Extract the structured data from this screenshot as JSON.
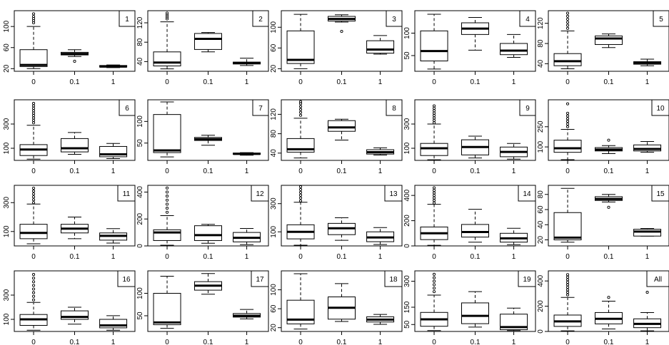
{
  "figure": {
    "background": "#ffffff",
    "box_fill": "#ffffff",
    "stroke_color": "#000000"
  },
  "chart_data": [
    {
      "type": "boxplot",
      "title": "",
      "panel_label": "1",
      "categories": [
        "0",
        "0.1",
        "1"
      ],
      "yticks": [
        20,
        60,
        100
      ],
      "ylim": [
        15,
        130
      ],
      "series": [
        {
          "category": "0",
          "whisker_low": 20,
          "q1": 24,
          "median": 27,
          "q3": 56,
          "whisker_high": 100,
          "outliers": [
            107,
            111,
            115,
            119,
            124
          ]
        },
        {
          "category": "0.1",
          "whisker_low": 43,
          "q1": 46,
          "median": 48,
          "q3": 51,
          "whisker_high": 56,
          "outliers": [
            34
          ]
        },
        {
          "category": "1",
          "whisker_low": 22,
          "q1": 23,
          "median": 24,
          "q3": 26,
          "whisker_high": 27,
          "outliers": []
        }
      ]
    },
    {
      "type": "boxplot",
      "title": "",
      "panel_label": "2",
      "categories": [
        "0",
        "0.1",
        "1"
      ],
      "yticks": [
        40,
        80,
        120
      ],
      "ylim": [
        20,
        145
      ],
      "series": [
        {
          "category": "0",
          "whisker_low": 25,
          "q1": 31,
          "median": 38,
          "q3": 60,
          "whisker_high": 122,
          "outliers": [
            128,
            132,
            136,
            140
          ]
        },
        {
          "category": "0.1",
          "whisker_low": 60,
          "q1": 65,
          "median": 87,
          "q3": 98,
          "whisker_high": 100,
          "outliers": []
        },
        {
          "category": "1",
          "whisker_low": 32,
          "q1": 35,
          "median": 37,
          "q3": 39,
          "whisker_high": 47,
          "outliers": []
        }
      ]
    },
    {
      "type": "boxplot",
      "title": "",
      "panel_label": "3",
      "categories": [
        "0",
        "0.1",
        "1"
      ],
      "yticks": [
        20,
        60,
        100
      ],
      "ylim": [
        15,
        132
      ],
      "series": [
        {
          "category": "0",
          "whisker_low": 20,
          "q1": 30,
          "median": 37,
          "q3": 93,
          "whisker_high": 125,
          "outliers": []
        },
        {
          "category": "0.1",
          "whisker_low": 110,
          "q1": 112,
          "median": 116,
          "q3": 121,
          "whisker_high": 124,
          "outliers": [
            92
          ]
        },
        {
          "category": "1",
          "whisker_low": 48,
          "q1": 50,
          "median": 57,
          "q3": 74,
          "whisker_high": 84,
          "outliers": []
        }
      ]
    },
    {
      "type": "boxplot",
      "title": "",
      "panel_label": "4",
      "categories": [
        "0",
        "0.1",
        "1"
      ],
      "yticks": [
        50,
        100
      ],
      "ylim": [
        15,
        150
      ],
      "series": [
        {
          "category": "0",
          "whisker_low": 20,
          "q1": 38,
          "median": 60,
          "q3": 105,
          "whisker_high": 142,
          "outliers": []
        },
        {
          "category": "0.1",
          "whisker_low": 62,
          "q1": 97,
          "median": 110,
          "q3": 123,
          "whisker_high": 135,
          "outliers": []
        },
        {
          "category": "1",
          "whisker_low": 46,
          "q1": 52,
          "median": 61,
          "q3": 77,
          "whisker_high": 97,
          "outliers": []
        }
      ]
    },
    {
      "type": "boxplot",
      "title": "",
      "panel_label": "5",
      "categories": [
        "0",
        "0.1",
        "1"
      ],
      "yticks": [
        40,
        80,
        120
      ],
      "ylim": [
        25,
        145
      ],
      "series": [
        {
          "category": "0",
          "whisker_low": 30,
          "q1": 36,
          "median": 45,
          "q3": 60,
          "whisker_high": 105,
          "outliers": [
            110,
            116,
            122,
            128,
            134,
            140
          ]
        },
        {
          "category": "0.1",
          "whisker_low": 72,
          "q1": 78,
          "median": 90,
          "q3": 95,
          "whisker_high": 99,
          "outliers": []
        },
        {
          "category": "1",
          "whisker_low": 36,
          "q1": 39,
          "median": 42,
          "q3": 44,
          "whisker_high": 49,
          "outliers": []
        }
      ]
    },
    {
      "type": "boxplot",
      "title": "",
      "panel_label": "6",
      "categories": [
        "0",
        "0.1",
        "1"
      ],
      "yticks": [
        100,
        300
      ],
      "ylim": [
        0,
        500
      ],
      "series": [
        {
          "category": "0",
          "whisker_low": 10,
          "q1": 40,
          "median": 90,
          "q3": 130,
          "whisker_high": 290,
          "outliers": [
            310,
            330,
            350,
            370,
            390,
            410,
            430,
            450,
            470
          ]
        },
        {
          "category": "0.1",
          "whisker_low": 50,
          "q1": 70,
          "median": 100,
          "q3": 180,
          "whisker_high": 230,
          "outliers": []
        },
        {
          "category": "1",
          "whisker_low": 15,
          "q1": 30,
          "median": 50,
          "q3": 115,
          "whisker_high": 140,
          "outliers": []
        }
      ]
    },
    {
      "type": "boxplot",
      "title": "",
      "panel_label": "7",
      "categories": [
        "0",
        "0.1",
        "1"
      ],
      "yticks": [
        50,
        100
      ],
      "ylim": [
        10,
        150
      ],
      "series": [
        {
          "category": "0",
          "whisker_low": 18,
          "q1": 28,
          "median": 33,
          "q3": 116,
          "whisker_high": 145,
          "outliers": []
        },
        {
          "category": "0.1",
          "whisker_low": 45,
          "q1": 56,
          "median": 59,
          "q3": 63,
          "whisker_high": 68,
          "outliers": []
        },
        {
          "category": "1",
          "whisker_low": 22,
          "q1": 24,
          "median": 25,
          "q3": 27,
          "whisker_high": 28,
          "outliers": []
        }
      ]
    },
    {
      "type": "boxplot",
      "title": "",
      "panel_label": "8",
      "categories": [
        "0",
        "0.1",
        "1"
      ],
      "yticks": [
        40,
        80,
        120
      ],
      "ylim": [
        25,
        150
      ],
      "series": [
        {
          "category": "0",
          "whisker_low": 30,
          "q1": 42,
          "median": 48,
          "q3": 70,
          "whisker_high": 112,
          "outliers": [
            118,
            124,
            130,
            136,
            142,
            146
          ]
        },
        {
          "category": "0.1",
          "whisker_low": 67,
          "q1": 85,
          "median": 93,
          "q3": 107,
          "whisker_high": 110,
          "outliers": []
        },
        {
          "category": "1",
          "whisker_low": 36,
          "q1": 38,
          "median": 42,
          "q3": 47,
          "whisker_high": 51,
          "outliers": []
        }
      ]
    },
    {
      "type": "boxplot",
      "title": "",
      "panel_label": "9",
      "categories": [
        "0",
        "0.1",
        "1"
      ],
      "yticks": [
        100,
        300
      ],
      "ylim": [
        0,
        500
      ],
      "series": [
        {
          "category": "0",
          "whisker_low": 5,
          "q1": 40,
          "median": 100,
          "q3": 140,
          "whisker_high": 300,
          "outliers": [
            310,
            330,
            350,
            370,
            390,
            410,
            430,
            450
          ]
        },
        {
          "category": "0.1",
          "whisker_low": 20,
          "q1": 45,
          "median": 110,
          "q3": 170,
          "whisker_high": 200,
          "outliers": []
        },
        {
          "category": "1",
          "whisker_low": 10,
          "q1": 30,
          "median": 70,
          "q3": 110,
          "whisker_high": 140,
          "outliers": []
        }
      ]
    },
    {
      "type": "boxplot",
      "title": "",
      "panel_label": "10",
      "categories": [
        "0",
        "0.1",
        "1"
      ],
      "yticks": [
        100,
        250
      ],
      "ylim": [
        0,
        450
      ],
      "series": [
        {
          "category": "0",
          "whisker_low": 5,
          "q1": 60,
          "median": 90,
          "q3": 150,
          "whisker_high": 230,
          "outliers": [
            250,
            270,
            290,
            310,
            330,
            350,
            420
          ]
        },
        {
          "category": "0.1",
          "whisker_low": 50,
          "q1": 70,
          "median": 80,
          "q3": 95,
          "whisker_high": 110,
          "outliers": [
            150
          ]
        },
        {
          "category": "1",
          "whisker_low": 60,
          "q1": 70,
          "median": 85,
          "q3": 115,
          "whisker_high": 140,
          "outliers": []
        }
      ]
    },
    {
      "type": "boxplot",
      "title": "",
      "panel_label": "11",
      "categories": [
        "0",
        "0.1",
        "1"
      ],
      "yticks": [
        100,
        300
      ],
      "ylim": [
        0,
        420
      ],
      "series": [
        {
          "category": "0",
          "whisker_low": 15,
          "q1": 50,
          "median": 90,
          "q3": 150,
          "whisker_high": 290,
          "outliers": [
            300,
            320,
            340,
            360,
            380,
            400
          ]
        },
        {
          "category": "0.1",
          "whisker_low": 50,
          "q1": 90,
          "median": 120,
          "q3": 150,
          "whisker_high": 200,
          "outliers": []
        },
        {
          "category": "1",
          "whisker_low": 20,
          "q1": 40,
          "median": 70,
          "q3": 90,
          "whisker_high": 120,
          "outliers": []
        }
      ]
    },
    {
      "type": "boxplot",
      "title": "",
      "panel_label": "12",
      "categories": [
        "0",
        "0.1",
        "1"
      ],
      "yticks": [
        0,
        200,
        400
      ],
      "ylim": [
        0,
        450
      ],
      "series": [
        {
          "category": "0",
          "whisker_low": 5,
          "q1": 40,
          "median": 100,
          "q3": 120,
          "whisker_high": 225,
          "outliers": [
            250,
            280,
            310,
            340,
            370,
            400,
            430
          ]
        },
        {
          "category": "0.1",
          "whisker_low": 20,
          "q1": 40,
          "median": 80,
          "q3": 150,
          "whisker_high": 160,
          "outliers": []
        },
        {
          "category": "1",
          "whisker_low": 10,
          "q1": 30,
          "median": 60,
          "q3": 100,
          "whisker_high": 130,
          "outliers": []
        }
      ]
    },
    {
      "type": "boxplot",
      "title": "",
      "panel_label": "13",
      "categories": [
        "0",
        "0.1",
        "1"
      ],
      "yticks": [
        100,
        300
      ],
      "ylim": [
        0,
        430
      ],
      "series": [
        {
          "category": "0",
          "whisker_low": 5,
          "q1": 50,
          "median": 100,
          "q3": 150,
          "whisker_high": 310,
          "outliers": [
            320,
            340,
            360,
            380,
            400,
            420
          ]
        },
        {
          "category": "0.1",
          "whisker_low": 40,
          "q1": 80,
          "median": 125,
          "q3": 160,
          "whisker_high": 200,
          "outliers": []
        },
        {
          "category": "1",
          "whisker_low": 10,
          "q1": 30,
          "median": 60,
          "q3": 100,
          "whisker_high": 130,
          "outliers": []
        }
      ]
    },
    {
      "type": "boxplot",
      "title": "",
      "panel_label": "14",
      "categories": [
        "0",
        "0.1",
        "1"
      ],
      "yticks": [
        0,
        200,
        400
      ],
      "ylim": [
        0,
        480
      ],
      "series": [
        {
          "category": "0",
          "whisker_low": 5,
          "q1": 50,
          "median": 100,
          "q3": 150,
          "whisker_high": 330,
          "outliers": [
            340,
            360,
            380,
            400,
            420,
            440,
            460
          ]
        },
        {
          "category": "0.1",
          "whisker_low": 30,
          "q1": 70,
          "median": 110,
          "q3": 170,
          "whisker_high": 290,
          "outliers": []
        },
        {
          "category": "1",
          "whisker_low": 10,
          "q1": 30,
          "median": 60,
          "q3": 100,
          "whisker_high": 140,
          "outliers": []
        }
      ]
    },
    {
      "type": "boxplot",
      "title": "",
      "panel_label": "15",
      "categories": [
        "0",
        "0.1",
        "1"
      ],
      "yticks": [
        20,
        40,
        60,
        80
      ],
      "ylim": [
        12,
        92
      ],
      "series": [
        {
          "category": "0",
          "whisker_low": 17,
          "q1": 20,
          "median": 23,
          "q3": 56,
          "whisker_high": 88,
          "outliers": []
        },
        {
          "category": "0.1",
          "whisker_low": 70,
          "q1": 72,
          "median": 74,
          "q3": 77,
          "whisker_high": 80,
          "outliers": [
            63
          ]
        },
        {
          "category": "1",
          "whisker_low": 25,
          "q1": 25,
          "median": 31,
          "q3": 34,
          "whisker_high": 35,
          "outliers": []
        }
      ]
    },
    {
      "type": "boxplot",
      "title": "",
      "panel_label": "16",
      "categories": [
        "0",
        "0.1",
        "1"
      ],
      "yticks": [
        100,
        300
      ],
      "ylim": [
        0,
        500
      ],
      "series": [
        {
          "category": "0",
          "whisker_low": 10,
          "q1": 50,
          "median": 100,
          "q3": 140,
          "whisker_high": 240,
          "outliers": [
            260,
            290,
            320,
            350,
            380,
            410,
            440,
            470
          ]
        },
        {
          "category": "0.1",
          "whisker_low": 60,
          "q1": 100,
          "median": 120,
          "q3": 170,
          "whisker_high": 200,
          "outliers": []
        },
        {
          "category": "1",
          "whisker_low": 10,
          "q1": 30,
          "median": 50,
          "q3": 100,
          "whisker_high": 130,
          "outliers": []
        }
      ]
    },
    {
      "type": "boxplot",
      "title": "",
      "panel_label": "17",
      "categories": [
        "0",
        "0.1",
        "1"
      ],
      "yticks": [
        50,
        100
      ],
      "ylim": [
        15,
        150
      ],
      "series": [
        {
          "category": "0",
          "whisker_low": 22,
          "q1": 30,
          "median": 35,
          "q3": 100,
          "whisker_high": 138,
          "outliers": []
        },
        {
          "category": "0.1",
          "whisker_low": 98,
          "q1": 107,
          "median": 117,
          "q3": 126,
          "whisker_high": 144,
          "outliers": []
        },
        {
          "category": "1",
          "whisker_low": 43,
          "q1": 47,
          "median": 50,
          "q3": 55,
          "whisker_high": 64,
          "outliers": []
        }
      ]
    },
    {
      "type": "boxplot",
      "title": "",
      "panel_label": "18",
      "categories": [
        "0",
        "0.1",
        "1"
      ],
      "yticks": [
        20,
        60,
        100
      ],
      "ylim": [
        12,
        140
      ],
      "series": [
        {
          "category": "0",
          "whisker_low": 17,
          "q1": 28,
          "median": 37,
          "q3": 78,
          "whisker_high": 134,
          "outliers": []
        },
        {
          "category": "0.1",
          "whisker_low": 33,
          "q1": 38,
          "median": 62,
          "q3": 85,
          "whisker_high": 113,
          "outliers": []
        },
        {
          "category": "1",
          "whisker_low": 27,
          "q1": 32,
          "median": 37,
          "q3": 43,
          "whisker_high": 48,
          "outliers": []
        }
      ]
    },
    {
      "type": "boxplot",
      "title": "",
      "panel_label": "19",
      "categories": [
        "0",
        "0.1",
        "1"
      ],
      "yticks": [
        50,
        150,
        300
      ],
      "ylim": [
        10,
        360
      ],
      "series": [
        {
          "category": "0",
          "whisker_low": 15,
          "q1": 40,
          "median": 80,
          "q3": 120,
          "whisker_high": 220,
          "outliers": [
            240,
            260,
            280,
            300,
            320,
            340
          ]
        },
        {
          "category": "0.1",
          "whisker_low": 35,
          "q1": 55,
          "median": 100,
          "q3": 175,
          "whisker_high": 240,
          "outliers": []
        },
        {
          "category": "1",
          "whisker_low": 15,
          "q1": 20,
          "median": 35,
          "q3": 110,
          "whisker_high": 145,
          "outliers": []
        }
      ]
    },
    {
      "type": "boxplot",
      "title": "",
      "panel_label": "All",
      "categories": [
        "0",
        "0.1",
        "1"
      ],
      "yticks": [
        0,
        200,
        400
      ],
      "ylim": [
        0,
        480
      ],
      "series": [
        {
          "category": "0",
          "whisker_low": 5,
          "q1": 40,
          "median": 80,
          "q3": 130,
          "whisker_high": 270,
          "outliers": [
            290,
            310,
            330,
            350,
            370,
            390,
            410,
            430,
            450
          ]
        },
        {
          "category": "0.1",
          "whisker_low": 20,
          "q1": 60,
          "median": 100,
          "q3": 150,
          "whisker_high": 240,
          "outliers": [
            270
          ]
        },
        {
          "category": "1",
          "whisker_low": 5,
          "q1": 30,
          "median": 60,
          "q3": 100,
          "whisker_high": 150,
          "outliers": [
            310
          ]
        }
      ]
    }
  ]
}
